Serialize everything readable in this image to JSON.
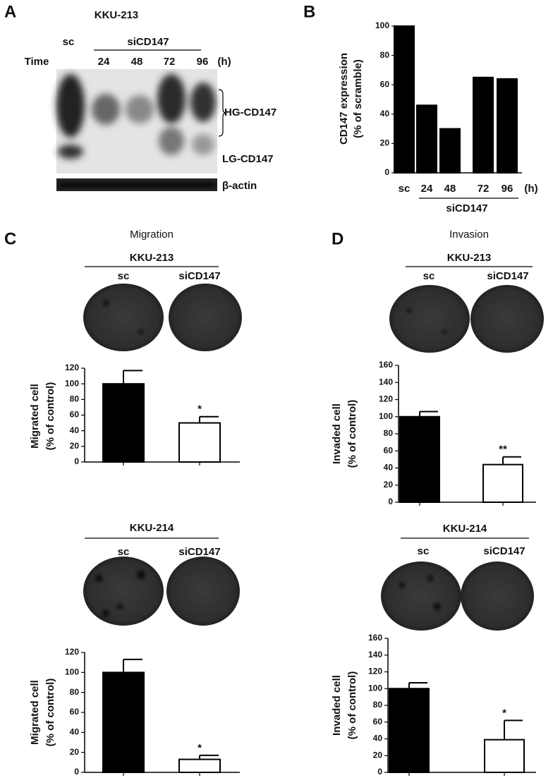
{
  "blot": {
    "panel": "A",
    "cell_line": "KKU-213",
    "control": "sc",
    "treatment": "siCD147",
    "time_label": "Time",
    "times": [
      "24",
      "48",
      "72",
      "96"
    ],
    "unit": "(h)",
    "bands": [
      "HG-CD147",
      "LG-CD147",
      "β-actin"
    ]
  },
  "chart_data": [
    {
      "type": "bar",
      "panel": "B",
      "ylabel": [
        "CD147 expression",
        "(% of scramble)"
      ],
      "categories": [
        "sc",
        "24",
        "48",
        "72",
        "96"
      ],
      "values": [
        100,
        46,
        30,
        65,
        64
      ],
      "color": "#000000",
      "ylim": [
        0,
        100
      ],
      "yticks": [
        0,
        20,
        40,
        60,
        80,
        100
      ],
      "unit": "(h)",
      "group_label": "siCD147"
    },
    {
      "type": "bar",
      "panel": "C",
      "title": "Migration",
      "cell_line": "KKU-213",
      "ylabel": [
        "Migrated cell",
        "(% of control)"
      ],
      "categories": [
        "sc",
        "siCD147"
      ],
      "values": [
        100,
        50
      ],
      "errors": [
        17,
        8
      ],
      "colors": [
        "#000000",
        "#ffffff"
      ],
      "annotations": [
        null,
        "*"
      ],
      "ylim": [
        0,
        120
      ],
      "yticks": [
        0,
        20,
        40,
        60,
        80,
        100,
        120
      ]
    },
    {
      "type": "bar",
      "cell_line": "KKU-214",
      "ylabel": [
        "Migrated cell",
        "(% of control)"
      ],
      "categories": [
        "sc",
        "siCD147"
      ],
      "values": [
        100,
        13
      ],
      "errors": [
        13,
        4
      ],
      "colors": [
        "#000000",
        "#ffffff"
      ],
      "annotations": [
        null,
        "*"
      ],
      "ylim": [
        0,
        120
      ],
      "yticks": [
        0,
        20,
        40,
        60,
        80,
        100,
        120
      ]
    },
    {
      "type": "bar",
      "panel": "D",
      "title": "Invasion",
      "cell_line": "KKU-213",
      "ylabel": [
        "Invaded cell",
        "(% of control)"
      ],
      "categories": [
        "sc",
        "siCD147"
      ],
      "values": [
        100,
        44
      ],
      "errors": [
        6,
        9
      ],
      "colors": [
        "#000000",
        "#ffffff"
      ],
      "annotations": [
        null,
        "**"
      ],
      "ylim": [
        0,
        160
      ],
      "yticks": [
        0,
        20,
        40,
        60,
        80,
        100,
        120,
        140,
        160
      ]
    },
    {
      "type": "bar",
      "cell_line": "KKU-214",
      "ylabel": [
        "Invaded cell",
        "(% of control)"
      ],
      "categories": [
        "sc",
        "siCD147"
      ],
      "values": [
        100,
        39
      ],
      "errors": [
        7,
        23
      ],
      "colors": [
        "#000000",
        "#ffffff"
      ],
      "annotations": [
        null,
        "*"
      ],
      "ylim": [
        0,
        160
      ],
      "yticks": [
        0,
        20,
        40,
        60,
        80,
        100,
        120,
        140,
        160
      ]
    }
  ]
}
